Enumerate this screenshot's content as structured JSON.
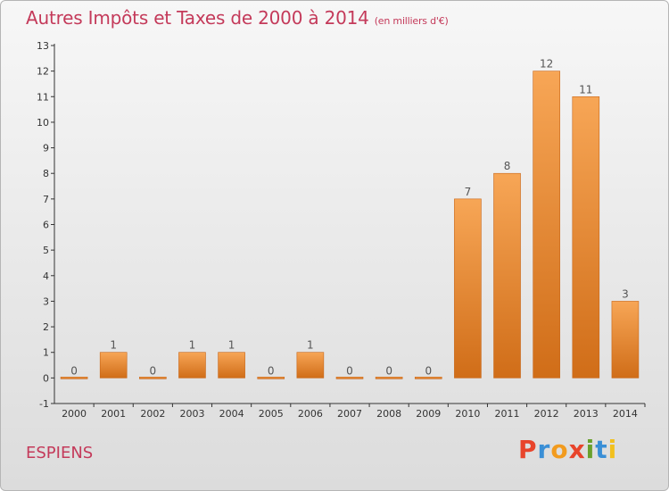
{
  "header": {
    "title": "Autres Impôts et Taxes de 2000 à 2014",
    "subtitle": "(en milliers d'€)"
  },
  "footer": {
    "location": "ESPIENS",
    "logo": "Proxiti",
    "logo_colors": [
      "#e8442b",
      "#3a8fd6",
      "#f29b1e",
      "#e8442b",
      "#6aa02c",
      "#3a8fd6",
      "#f2c01e"
    ]
  },
  "chart_data": {
    "type": "bar",
    "title": "Autres Impôts et Taxes de 2000 à 2014",
    "subtitle": "(en milliers d'€)",
    "categories": [
      "2000",
      "2001",
      "2002",
      "2003",
      "2004",
      "2005",
      "2006",
      "2007",
      "2008",
      "2009",
      "2010",
      "2011",
      "2012",
      "2013",
      "2014"
    ],
    "values": [
      0,
      1,
      0,
      1,
      1,
      0,
      1,
      0,
      0,
      0,
      7,
      8,
      12,
      11,
      3
    ],
    "data_labels": [
      "0",
      "1",
      "0",
      "1",
      "1",
      "0",
      "1",
      "0",
      "0",
      "0",
      "7",
      "8",
      "12",
      "11",
      "3"
    ],
    "yticks": [
      -1,
      0,
      1,
      2,
      3,
      4,
      5,
      6,
      7,
      8,
      9,
      10,
      11,
      12,
      13
    ],
    "ylim": [
      -1,
      13
    ],
    "grid": false,
    "bar_color": "#e8842a"
  }
}
